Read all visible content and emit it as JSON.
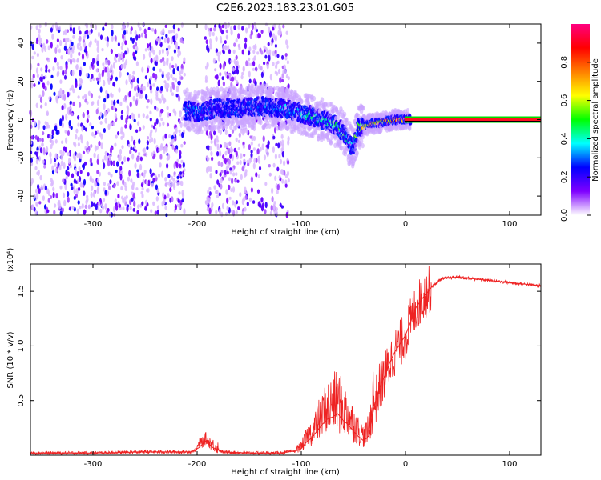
{
  "title": "C2E6.2023.183.23.01.G05",
  "chart_data": [
    {
      "type": "heatmap",
      "xlabel": "Height of straight line (km)",
      "ylabel": "Frequency (Hz)",
      "xlim": [
        -360,
        130
      ],
      "ylim": [
        -50,
        50
      ],
      "xticks": [
        -300,
        -200,
        -100,
        0,
        100
      ],
      "yticks": [
        -40,
        -20,
        0,
        20,
        40
      ],
      "colorbar": {
        "label": "Normalized spectral amplitude",
        "range": [
          0.0,
          1.0
        ],
        "ticks": [
          0.0,
          0.2,
          0.4,
          0.6,
          0.8
        ],
        "tick_labels": [
          "0.0",
          "0.2",
          "0.4",
          "0.6",
          "0.8"
        ],
        "colors": [
          "#ffffff",
          "#7f00ff",
          "#0000ff",
          "#00ffff",
          "#00ff00",
          "#ffff00",
          "#ff7f00",
          "#ff0000",
          "#ff0080"
        ]
      },
      "noise_regions": [
        {
          "x_range": [
            -360,
            -212
          ],
          "amplitude": 0.15
        },
        {
          "x_range": [
            -192,
            -112
          ],
          "amplitude": 0.12
        }
      ],
      "signal_track": {
        "x": [
          -212,
          -200,
          -180,
          -160,
          -140,
          -120,
          -105,
          -90,
          -80,
          -70,
          -60,
          -55,
          -50,
          -45,
          -40,
          -30,
          -20,
          -10,
          0,
          50,
          130
        ],
        "y": [
          5,
          4,
          6,
          6,
          7,
          6,
          4,
          2,
          0,
          -2,
          -6,
          -12,
          -14,
          -4,
          -3,
          -2,
          -1,
          0,
          0,
          0,
          0
        ],
        "amplitude": [
          0.25,
          0.3,
          0.2,
          0.25,
          0.25,
          0.3,
          0.3,
          0.4,
          0.35,
          0.4,
          0.4,
          0.35,
          0.4,
          0.5,
          0.6,
          0.65,
          0.7,
          0.75,
          0.85,
          0.95,
          0.95
        ]
      }
    },
    {
      "type": "line",
      "xlabel": "Height of straight line (km)",
      "ylabel": "SNR (10 * v/v)",
      "y_multiplier_label": "(x10⁴)",
      "xlim": [
        -360,
        130
      ],
      "ylim": [
        0,
        1.75
      ],
      "xticks": [
        -300,
        -200,
        -100,
        0,
        100
      ],
      "yticks": [
        0.5,
        1.0,
        1.5
      ],
      "ytick_labels": [
        "0.5",
        "1.0",
        "1.5"
      ],
      "series": [
        {
          "color": "#ee2222",
          "x": [
            -360,
            -300,
            -250,
            -205,
            -198,
            -192,
            -185,
            -175,
            -150,
            -120,
            -105,
            -100,
            -95,
            -90,
            -85,
            -80,
            -75,
            -70,
            -65,
            -60,
            -55,
            -50,
            -45,
            -40,
            -35,
            -30,
            -25,
            -20,
            -15,
            -10,
            -5,
            0,
            5,
            10,
            15,
            20,
            25,
            30,
            35,
            40,
            50,
            60,
            80,
            100,
            120,
            130
          ],
          "y": [
            0.02,
            0.02,
            0.03,
            0.03,
            0.07,
            0.13,
            0.07,
            0.03,
            0.02,
            0.02,
            0.04,
            0.06,
            0.12,
            0.16,
            0.22,
            0.28,
            0.33,
            0.35,
            0.38,
            0.32,
            0.28,
            0.22,
            0.17,
            0.13,
            0.18,
            0.45,
            0.62,
            0.72,
            0.85,
            0.95,
            1.02,
            1.1,
            1.22,
            1.35,
            1.42,
            1.48,
            1.54,
            1.58,
            1.62,
            1.62,
            1.63,
            1.62,
            1.6,
            1.58,
            1.56,
            1.55
          ]
        }
      ]
    }
  ]
}
